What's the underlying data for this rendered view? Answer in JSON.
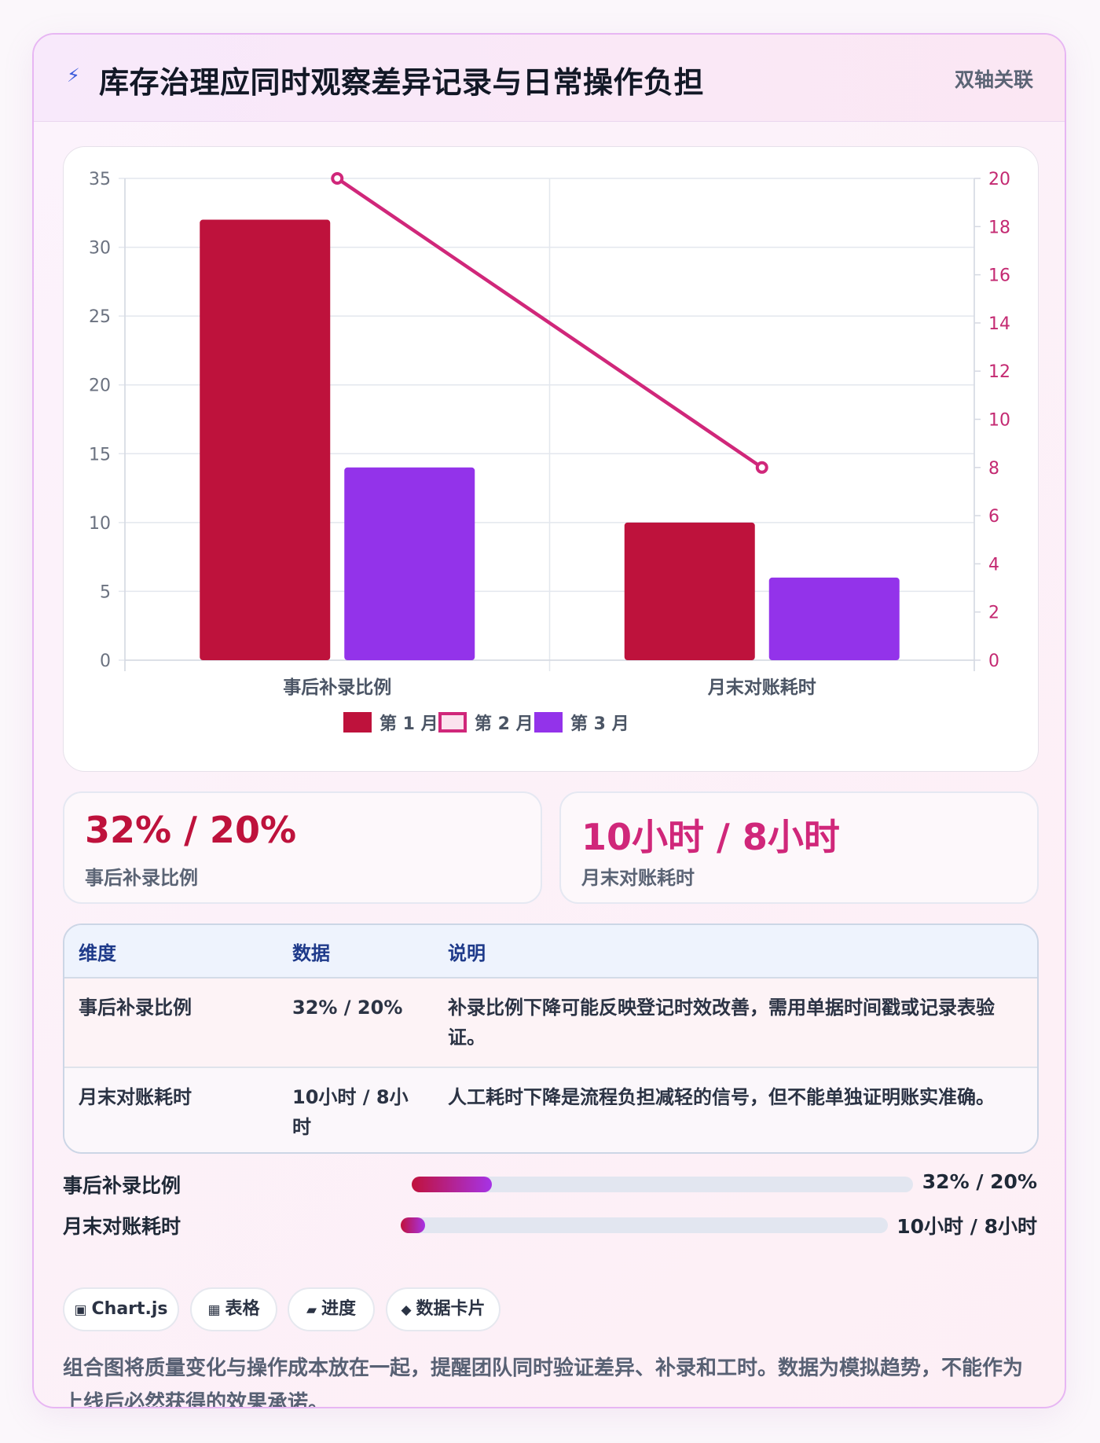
{
  "header": {
    "icon": "bolt-icon",
    "title": "库存治理应同时观察差异记录与日常操作负担",
    "tag": "双轴关联"
  },
  "chart_data": {
    "type": "bar+line",
    "categories": [
      "事后补录比例",
      "月末对账耗时"
    ],
    "series": [
      {
        "name": "第 1 月",
        "type": "bar",
        "axis": "left",
        "values": [
          32,
          10
        ],
        "color": "#be123c"
      },
      {
        "name": "第 2 月",
        "type": "line",
        "axis": "right",
        "values": [
          20,
          8
        ],
        "color": "#d0277a"
      },
      {
        "name": "第 3 月",
        "type": "bar",
        "axis": "left",
        "values": [
          14,
          6
        ],
        "color": "#9333ea"
      }
    ],
    "y_left": {
      "min": 0,
      "max": 35,
      "ticks": [
        0,
        5,
        10,
        15,
        20,
        25,
        30,
        35
      ]
    },
    "y_right": {
      "min": 0,
      "max": 20,
      "ticks": [
        0,
        2,
        4,
        6,
        8,
        10,
        12,
        14,
        16,
        18,
        20
      ]
    },
    "legend": "bottom",
    "grid": true
  },
  "kpis": [
    {
      "value": "32% / 20%",
      "label": "事后补录比例",
      "color": "#be123c"
    },
    {
      "value": "10小时 / 8小时",
      "label": "月末对账耗时",
      "color": "#d0277a"
    }
  ],
  "table": {
    "headers": [
      "维度",
      "数据",
      "说明"
    ],
    "rows": [
      [
        "事后补录比例",
        "32% / 20%",
        "补录比例下降可能反映登记时效改善，需用单据时间戳或记录表验证。"
      ],
      [
        "月末对账耗时",
        "10小时 / 8小时",
        "人工耗时下降是流程负担减轻的信号，但不能单独证明账实准确。"
      ]
    ]
  },
  "progress": [
    {
      "label": "事后补录比例",
      "value": "32% / 20%",
      "fill_fraction": 0.16
    },
    {
      "label": "月末对账耗时",
      "value": "10小时 / 8小时",
      "fill_fraction": 0.05
    }
  ],
  "chips": [
    {
      "icon": "▣",
      "label": "Chart.js"
    },
    {
      "icon": "▦",
      "label": "表格"
    },
    {
      "icon": "▰",
      "label": "进度"
    },
    {
      "icon": "◆",
      "label": "数据卡片"
    }
  ],
  "footnote": "组合图将质量变化与操作成本放在一起，提醒团队同时验证差异、补录和工时。数据为模拟趋势，不能作为上线后必然获得的效果承诺。"
}
